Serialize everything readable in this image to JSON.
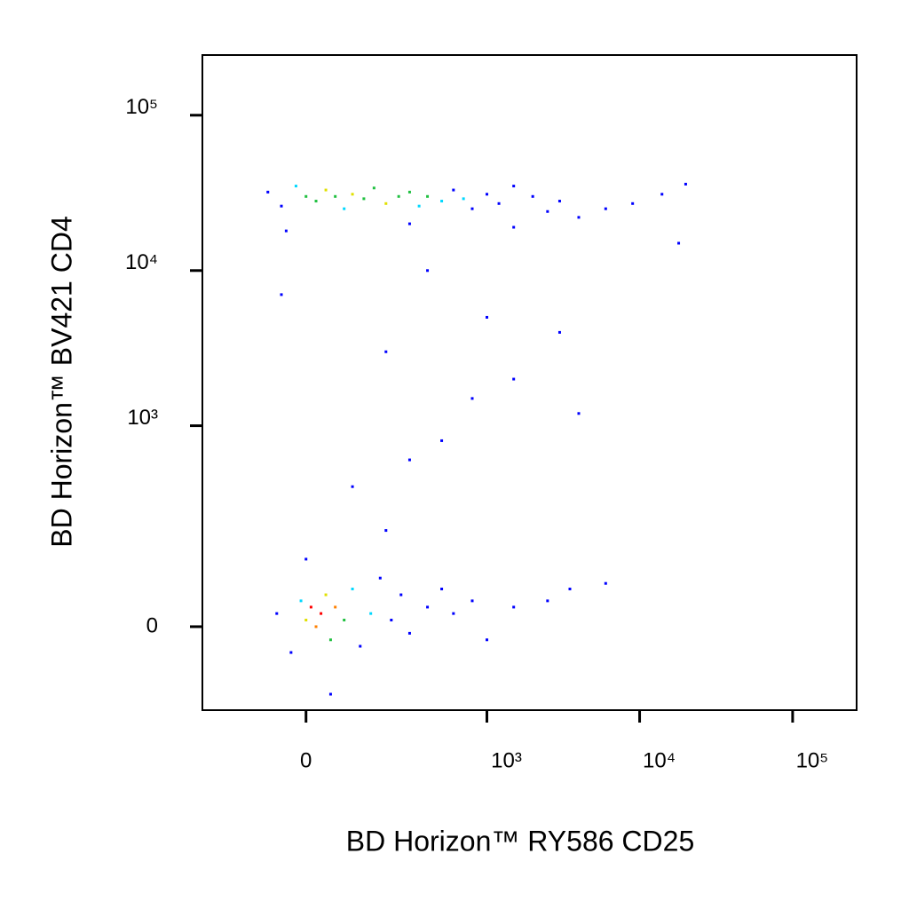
{
  "chart_data": {
    "type": "scatter",
    "scale": "biexponential",
    "x_label": "BD Horizon™ RY586  CD25",
    "y_label": "BD Horizon™ BV421 CD4",
    "xlim": [
      -300,
      262000
    ],
    "ylim": [
      -161,
      244000
    ],
    "xticks": [
      0,
      {
        "value": 1000,
        "label": "10³"
      },
      {
        "value": 10000,
        "label": "10⁴"
      },
      {
        "value": 100000,
        "label": "10⁵"
      }
    ],
    "yticks": [
      0,
      {
        "value": 1000,
        "label": "10³"
      },
      {
        "value": 10000,
        "label": "10⁴"
      },
      {
        "value": 100000,
        "label": "10⁵"
      }
    ],
    "x": [
      -80,
      -50,
      -20,
      0,
      20,
      40,
      60,
      80,
      100,
      130,
      160,
      200,
      250,
      300,
      350,
      400,
      500,
      600,
      700,
      800,
      1000,
      1200,
      1500,
      2000,
      2500,
      3000,
      4000,
      6000,
      9000,
      14000,
      20000,
      18000,
      -40,
      300,
      1500,
      -60,
      -30,
      -10,
      0,
      10,
      20,
      30,
      40,
      50,
      60,
      80,
      100,
      120,
      150,
      180,
      220,
      260,
      300,
      400,
      500,
      600,
      800,
      1000,
      1500,
      2500,
      3500,
      6000,
      50,
      0,
      200,
      100,
      300,
      500,
      800,
      200,
      1000,
      3000,
      400,
      -50,
      1500,
      4000
    ],
    "values": [
      32000,
      26000,
      35000,
      30000,
      28000,
      33000,
      30000,
      25000,
      31000,
      29000,
      34000,
      27000,
      30000,
      32000,
      26000,
      30000,
      28000,
      33000,
      29000,
      25000,
      31000,
      27000,
      35000,
      30000,
      24000,
      28000,
      22000,
      25000,
      27000,
      31000,
      36000,
      15000,
      18000,
      20000,
      19000,
      20,
      -40,
      40,
      10,
      30,
      0,
      20,
      50,
      -20,
      30,
      10,
      60,
      -30,
      20,
      80,
      10,
      50,
      -10,
      30,
      60,
      20,
      40,
      -20,
      30,
      40,
      60,
      70,
      -120,
      120,
      200,
      400,
      600,
      800,
      1500,
      3000,
      5000,
      4000,
      10000,
      7000,
      2000,
      1200
    ],
    "colors": [
      "#0000ff",
      "#0000ff",
      "#00d8ff",
      "#20c040",
      "#20c040",
      "#e0e000",
      "#20c040",
      "#00d8ff",
      "#e0e000",
      "#20c040",
      "#20c040",
      "#e0e000",
      "#20c040",
      "#20c040",
      "#00d8ff",
      "#20c040",
      "#00d8ff",
      "#0000ff",
      "#00d8ff",
      "#0000ff",
      "#0000ff",
      "#0000ff",
      "#0000ff",
      "#0000ff",
      "#0000ff",
      "#0000ff",
      "#0000ff",
      "#0000ff",
      "#0000ff",
      "#0000ff",
      "#0000ff",
      "#0000ff",
      "#0000ff",
      "#0000ff",
      "#0000ff",
      "#0000ff",
      "#0000ff",
      "#00d8ff",
      "#e0e000",
      "#ff0000",
      "#ff8000",
      "#ff0000",
      "#e0e000",
      "#20c040",
      "#ff8000",
      "#20c040",
      "#00d8ff",
      "#0000ff",
      "#00d8ff",
      "#0000ff",
      "#0000ff",
      "#0000ff",
      "#0000ff",
      "#0000ff",
      "#0000ff",
      "#0000ff",
      "#0000ff",
      "#0000ff",
      "#0000ff",
      "#0000ff",
      "#0000ff",
      "#0000ff",
      "#0000ff",
      "#0000ff",
      "#0000ff",
      "#0000ff",
      "#0000ff",
      "#0000ff",
      "#0000ff",
      "#0000ff",
      "#0000ff",
      "#0000ff",
      "#0000ff",
      "#0000ff",
      "#0000ff",
      "#0000ff"
    ]
  }
}
